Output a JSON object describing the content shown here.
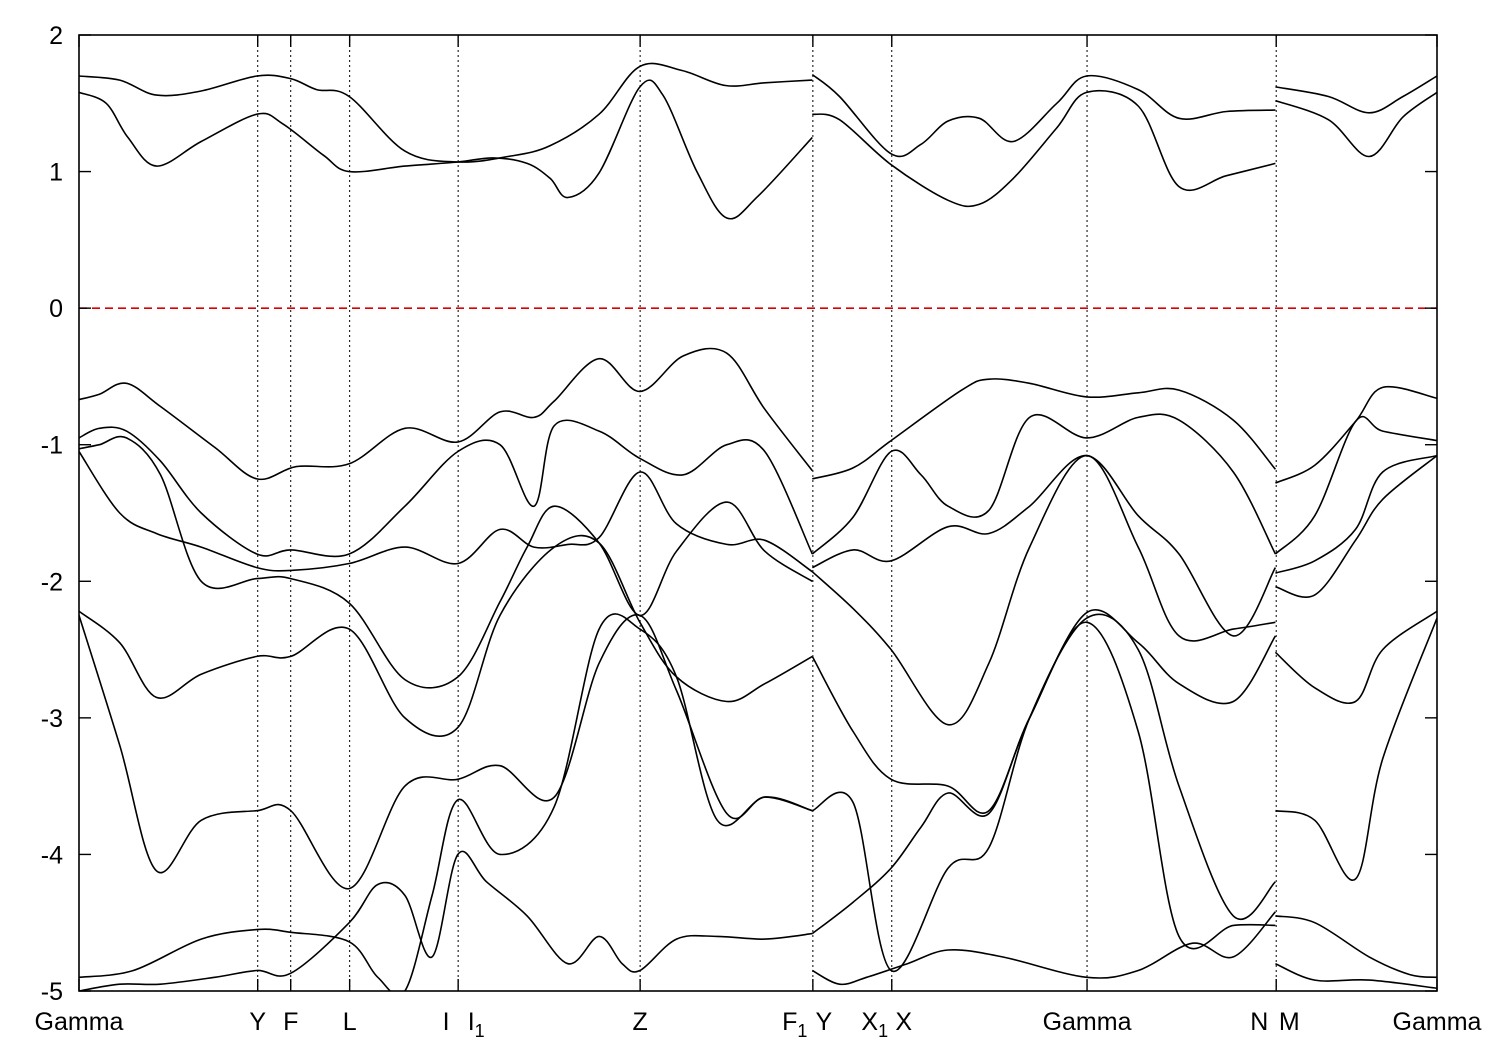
{
  "chart_data": {
    "type": "line",
    "title": "",
    "xlabel": "",
    "ylabel": "",
    "ylim": [
      -5,
      2
    ],
    "xlim": [
      0,
      1
    ],
    "y_ticks": [
      2,
      1,
      0,
      -1,
      -2,
      -3,
      -4,
      -5
    ],
    "y_tick_labels": [
      "2",
      "1",
      "0",
      "-1",
      "-2",
      "-3",
      "-4",
      "-5"
    ],
    "grid": false,
    "legend": "none",
    "line_color": "#000000",
    "fermi_level": {
      "y": 0,
      "color": "#dd0000",
      "style": "dashed"
    },
    "high_symmetry_points": [
      {
        "x": 0.0,
        "label": "Gamma",
        "sub": ""
      },
      {
        "x": 0.1316,
        "label": "Y",
        "sub": ""
      },
      {
        "x": 0.1559,
        "label": "F",
        "sub": ""
      },
      {
        "x": 0.1993,
        "label": "L",
        "sub": ""
      },
      {
        "x": 0.2792,
        "label": "I",
        "sub": ""
      },
      {
        "x": 0.2792,
        "label": "I",
        "sub": "1"
      },
      {
        "x": 0.4132,
        "label": "Z",
        "sub": ""
      },
      {
        "x": 0.5404,
        "label": "F",
        "sub": "1"
      },
      {
        "x": 0.5404,
        "label": "Y",
        "sub": ""
      },
      {
        "x": 0.5985,
        "label": "X",
        "sub": "1"
      },
      {
        "x": 0.5985,
        "label": "X",
        "sub": ""
      },
      {
        "x": 0.7423,
        "label": "Gamma",
        "sub": ""
      },
      {
        "x": 0.8816,
        "label": "N",
        "sub": ""
      },
      {
        "x": 0.8816,
        "label": "M",
        "sub": ""
      },
      {
        "x": 1.0,
        "label": "Gamma",
        "sub": ""
      }
    ],
    "tick_label_text": [
      {
        "x": 0.0,
        "text": "Gamma",
        "sub": "",
        "anchor": "middle"
      },
      {
        "x": 0.1316,
        "text": "Y",
        "sub": "",
        "anchor": "middle"
      },
      {
        "x": 0.1559,
        "text": "F",
        "sub": "",
        "anchor": "middle"
      },
      {
        "x": 0.1993,
        "text": "L",
        "sub": "",
        "anchor": "middle"
      },
      {
        "x": 0.2703,
        "text": "I",
        "sub": "",
        "anchor": "middle"
      },
      {
        "x": 0.2925,
        "text": "I",
        "sub": "1",
        "anchor": "middle"
      },
      {
        "x": 0.4132,
        "text": "Z",
        "sub": "",
        "anchor": "middle"
      },
      {
        "x": 0.5271,
        "text": "F",
        "sub": "1",
        "anchor": "middle"
      },
      {
        "x": 0.5485,
        "text": "Y",
        "sub": "",
        "anchor": "middle"
      },
      {
        "x": 0.586,
        "text": "X",
        "sub": "1",
        "anchor": "middle"
      },
      {
        "x": 0.6073,
        "text": "X",
        "sub": "",
        "anchor": "middle"
      },
      {
        "x": 0.7423,
        "text": "Gamma",
        "sub": "",
        "anchor": "middle"
      },
      {
        "x": 0.8691,
        "text": "N",
        "sub": "",
        "anchor": "middle"
      },
      {
        "x": 0.8912,
        "text": "M",
        "sub": "",
        "anchor": "middle"
      },
      {
        "x": 1.0,
        "text": "Gamma",
        "sub": "",
        "anchor": "middle"
      }
    ],
    "series": [
      {
        "x": [
          0.0,
          0.03,
          0.057,
          0.09,
          0.131,
          0.156,
          0.175,
          0.199,
          0.24,
          0.279,
          0.316,
          0.347,
          0.383,
          0.413,
          0.444,
          0.476,
          0.505,
          0.54
        ],
        "y": [
          1.7,
          1.67,
          1.56,
          1.59,
          1.7,
          1.68,
          1.6,
          1.55,
          1.15,
          1.07,
          1.11,
          1.19,
          1.42,
          1.77,
          1.74,
          1.63,
          1.65,
          1.67
        ]
      },
      {
        "x": [
          0.54,
          0.56,
          0.598,
          0.62,
          0.64,
          0.663,
          0.688,
          0.72,
          0.742,
          0.78,
          0.81,
          0.845,
          0.881
        ],
        "y": [
          1.71,
          1.55,
          1.13,
          1.2,
          1.37,
          1.39,
          1.22,
          1.5,
          1.7,
          1.6,
          1.39,
          1.44,
          1.45
        ]
      },
      {
        "x": [
          0.881,
          0.92,
          0.95,
          0.975,
          1.0
        ],
        "y": [
          1.62,
          1.55,
          1.43,
          1.55,
          1.7
        ]
      },
      {
        "x": [
          0.0,
          0.02,
          0.036,
          0.057,
          0.09,
          0.131,
          0.15,
          0.18,
          0.199,
          0.24,
          0.279,
          0.305,
          0.33,
          0.347,
          0.36,
          0.383,
          0.413,
          0.43,
          0.455,
          0.477,
          0.5,
          0.54
        ],
        "y": [
          1.58,
          1.5,
          1.25,
          1.04,
          1.22,
          1.42,
          1.35,
          1.12,
          1.0,
          1.04,
          1.07,
          1.1,
          1.06,
          0.95,
          0.81,
          0.99,
          1.62,
          1.56,
          1.0,
          0.66,
          0.82,
          1.25
        ]
      },
      {
        "x": [
          0.54,
          0.56,
          0.598,
          0.64,
          0.663,
          0.688,
          0.72,
          0.742,
          0.78,
          0.81,
          0.845,
          0.881
        ],
        "y": [
          1.42,
          1.38,
          1.05,
          0.79,
          0.76,
          0.95,
          1.32,
          1.58,
          1.48,
          0.89,
          0.97,
          1.06
        ]
      },
      {
        "x": [
          0.881,
          0.92,
          0.95,
          0.975,
          1.0
        ],
        "y": [
          1.52,
          1.38,
          1.11,
          1.4,
          1.58
        ]
      },
      {
        "x": [
          0.0,
          0.015,
          0.035,
          0.06,
          0.1,
          0.131,
          0.16,
          0.199,
          0.24,
          0.279,
          0.31,
          0.335,
          0.35,
          0.383,
          0.413,
          0.445,
          0.477,
          0.505,
          0.54
        ],
        "y": [
          -0.67,
          -0.63,
          -0.55,
          -0.72,
          -1.02,
          -1.25,
          -1.16,
          -1.14,
          -0.88,
          -0.98,
          -0.76,
          -0.8,
          -0.68,
          -0.37,
          -0.61,
          -0.35,
          -0.33,
          -0.74,
          -1.19
        ]
      },
      {
        "x": [
          0.54,
          0.57,
          0.598,
          0.65,
          0.67,
          0.7,
          0.742,
          0.78,
          0.81,
          0.85,
          0.881
        ],
        "y": [
          -1.25,
          -1.17,
          -0.97,
          -0.6,
          -0.52,
          -0.55,
          -0.65,
          -0.62,
          -0.6,
          -0.82,
          -1.18
        ]
      },
      {
        "x": [
          0.881,
          0.91,
          0.94,
          0.96,
          1.0
        ],
        "y": [
          -1.28,
          -1.15,
          -0.83,
          -0.58,
          -0.66
        ]
      },
      {
        "x": [
          0.0,
          0.015,
          0.035,
          0.06,
          0.09,
          0.131,
          0.156,
          0.199,
          0.24,
          0.279,
          0.31,
          0.335,
          0.35,
          0.383,
          0.413,
          0.445,
          0.477,
          0.505,
          0.54
        ],
        "y": [
          -0.95,
          -0.88,
          -0.9,
          -1.12,
          -1.5,
          -1.8,
          -1.77,
          -1.8,
          -1.45,
          -1.05,
          -1.0,
          -1.45,
          -0.86,
          -0.9,
          -1.1,
          -1.22,
          -1.0,
          -1.05,
          -1.8
        ]
      },
      {
        "x": [
          0.54,
          0.57,
          0.598,
          0.62,
          0.64,
          0.67,
          0.7,
          0.742,
          0.78,
          0.81,
          0.85,
          0.881
        ],
        "y": [
          -1.8,
          -1.53,
          -1.05,
          -1.22,
          -1.45,
          -1.48,
          -0.8,
          -0.95,
          -0.8,
          -0.82,
          -1.2,
          -1.8
        ]
      },
      {
        "x": [
          0.881,
          0.91,
          0.94,
          0.96,
          1.0
        ],
        "y": [
          -1.8,
          -1.52,
          -0.83,
          -0.9,
          -0.97
        ]
      },
      {
        "x": [
          0.0,
          0.015,
          0.035,
          0.06,
          0.09,
          0.131,
          0.156,
          0.199,
          0.24,
          0.279,
          0.31,
          0.33,
          0.35,
          0.383,
          0.413,
          0.44,
          0.477,
          0.505,
          0.54
        ],
        "y": [
          -1.03,
          -1.0,
          -0.95,
          -1.22,
          -2.0,
          -1.98,
          -1.98,
          -2.16,
          -2.72,
          -2.7,
          -2.15,
          -1.75,
          -1.45,
          -1.72,
          -2.25,
          -1.78,
          -1.42,
          -1.78,
          -2.0
        ]
      },
      {
        "x": [
          0.54,
          0.57,
          0.598,
          0.64,
          0.67,
          0.7,
          0.742,
          0.78,
          0.81,
          0.85,
          0.881
        ],
        "y": [
          -1.9,
          -1.77,
          -1.85,
          -1.6,
          -1.65,
          -1.45,
          -1.08,
          -1.52,
          -1.8,
          -2.4,
          -1.9
        ]
      },
      {
        "x": [
          0.881,
          0.91,
          0.94,
          0.96,
          1.0
        ],
        "y": [
          -1.94,
          -1.85,
          -1.62,
          -1.2,
          -1.08
        ]
      },
      {
        "x": [
          0.0,
          0.03,
          0.057,
          0.09,
          0.131,
          0.156,
          0.199,
          0.24,
          0.279,
          0.31,
          0.335,
          0.36,
          0.383,
          0.413,
          0.44,
          0.477,
          0.505,
          0.54
        ],
        "y": [
          -1.05,
          -1.5,
          -1.65,
          -1.75,
          -1.9,
          -1.92,
          -1.87,
          -1.75,
          -1.87,
          -1.62,
          -1.75,
          -1.73,
          -1.68,
          -1.2,
          -1.58,
          -1.73,
          -1.7,
          -1.93
        ]
      },
      {
        "x": [
          0.54,
          0.57,
          0.598,
          0.64,
          0.67,
          0.7,
          0.742,
          0.78,
          0.81,
          0.85,
          0.881
        ],
        "y": [
          -1.93,
          -2.2,
          -2.5,
          -3.05,
          -2.6,
          -1.75,
          -1.08,
          -1.75,
          -2.4,
          -2.35,
          -2.3
        ]
      },
      {
        "x": [
          0.881,
          0.91,
          0.94,
          0.96,
          1.0
        ],
        "y": [
          -2.04,
          -2.1,
          -1.7,
          -1.4,
          -1.08
        ]
      },
      {
        "x": [
          0.0,
          0.03,
          0.057,
          0.09,
          0.131,
          0.156,
          0.199,
          0.24,
          0.279,
          0.31,
          0.35,
          0.383,
          0.413,
          0.44,
          0.477,
          0.505,
          0.54
        ],
        "y": [
          -2.22,
          -2.45,
          -2.85,
          -2.68,
          -2.55,
          -2.55,
          -2.35,
          -3.0,
          -3.07,
          -2.25,
          -1.75,
          -1.72,
          -2.3,
          -2.7,
          -2.88,
          -2.75,
          -2.55
        ]
      },
      {
        "x": [
          0.54,
          0.57,
          0.598,
          0.64,
          0.67,
          0.7,
          0.742,
          0.78,
          0.81,
          0.85,
          0.881
        ],
        "y": [
          -2.55,
          -3.1,
          -3.45,
          -3.5,
          -3.68,
          -3.0,
          -2.23,
          -2.45,
          -2.75,
          -2.88,
          -2.4
        ]
      },
      {
        "x": [
          0.881,
          0.91,
          0.94,
          0.96,
          1.0
        ],
        "y": [
          -2.52,
          -2.78,
          -2.88,
          -2.5,
          -2.22
        ]
      },
      {
        "x": [
          0.0,
          0.03,
          0.057,
          0.09,
          0.131,
          0.156,
          0.199,
          0.24,
          0.279,
          0.31,
          0.35,
          0.383,
          0.413,
          0.44,
          0.477,
          0.505,
          0.54
        ],
        "y": [
          -2.25,
          -3.2,
          -4.12,
          -3.75,
          -3.68,
          -3.68,
          -4.25,
          -3.5,
          -3.45,
          -3.35,
          -3.58,
          -2.6,
          -2.25,
          -2.8,
          -3.7,
          -3.58,
          -3.68
        ]
      },
      {
        "x": [
          0.54,
          0.57,
          0.598,
          0.64,
          0.67,
          0.7,
          0.742,
          0.78,
          0.81,
          0.85,
          0.881
        ],
        "y": [
          -3.68,
          -3.62,
          -4.85,
          -4.1,
          -3.95,
          -3.0,
          -2.27,
          -2.5,
          -3.5,
          -4.45,
          -4.2
        ]
      },
      {
        "x": [
          0.881,
          0.91,
          0.94,
          0.96,
          1.0
        ],
        "y": [
          -3.68,
          -3.75,
          -4.18,
          -3.3,
          -2.27
        ]
      },
      {
        "x": [
          0.0,
          0.04,
          0.09,
          0.131,
          0.156,
          0.199,
          0.22,
          0.24,
          0.26,
          0.279,
          0.31,
          0.35,
          0.383,
          0.413,
          0.44,
          0.47,
          0.505,
          0.54
        ],
        "y": [
          -4.9,
          -4.85,
          -4.62,
          -4.55,
          -4.57,
          -4.64,
          -4.9,
          -5.0,
          -4.3,
          -3.6,
          -4.0,
          -3.65,
          -2.35,
          -2.35,
          -2.7,
          -3.75,
          -3.58,
          -3.68
        ]
      },
      {
        "x": [
          0.54,
          0.57,
          0.598,
          0.62,
          0.64,
          0.67,
          0.7,
          0.742,
          0.78,
          0.81,
          0.85,
          0.881
        ],
        "y": [
          -4.58,
          -4.35,
          -4.1,
          -3.8,
          -3.55,
          -3.7,
          -3.0,
          -2.3,
          -3.1,
          -4.6,
          -4.52,
          -4.52
        ]
      },
      {
        "x": [
          0.881,
          0.91,
          0.95,
          0.98,
          1.0
        ],
        "y": [
          -4.45,
          -4.5,
          -4.75,
          -4.88,
          -4.9
        ]
      },
      {
        "x": [
          0.0,
          0.03,
          0.06,
          0.1,
          0.131,
          0.156,
          0.199,
          0.22,
          0.24,
          0.26,
          0.279,
          0.3,
          0.33,
          0.36,
          0.383,
          0.4,
          0.413,
          0.44,
          0.47,
          0.505,
          0.54
        ],
        "y": [
          -5.0,
          -4.95,
          -4.95,
          -4.9,
          -4.85,
          -4.87,
          -4.5,
          -4.22,
          -4.3,
          -4.75,
          -4.0,
          -4.2,
          -4.45,
          -4.8,
          -4.6,
          -4.8,
          -4.85,
          -4.62,
          -4.6,
          -4.62,
          -4.58
        ]
      },
      {
        "x": [
          0.54,
          0.56,
          0.58,
          0.61,
          0.64,
          0.68,
          0.742,
          0.78,
          0.82,
          0.85,
          0.881
        ],
        "y": [
          -4.85,
          -4.95,
          -4.9,
          -4.8,
          -4.7,
          -4.75,
          -4.9,
          -4.85,
          -4.65,
          -4.75,
          -4.42
        ]
      },
      {
        "x": [
          0.881,
          0.91,
          0.95,
          1.0
        ],
        "y": [
          -4.8,
          -4.92,
          -4.92,
          -4.98
        ]
      }
    ]
  }
}
